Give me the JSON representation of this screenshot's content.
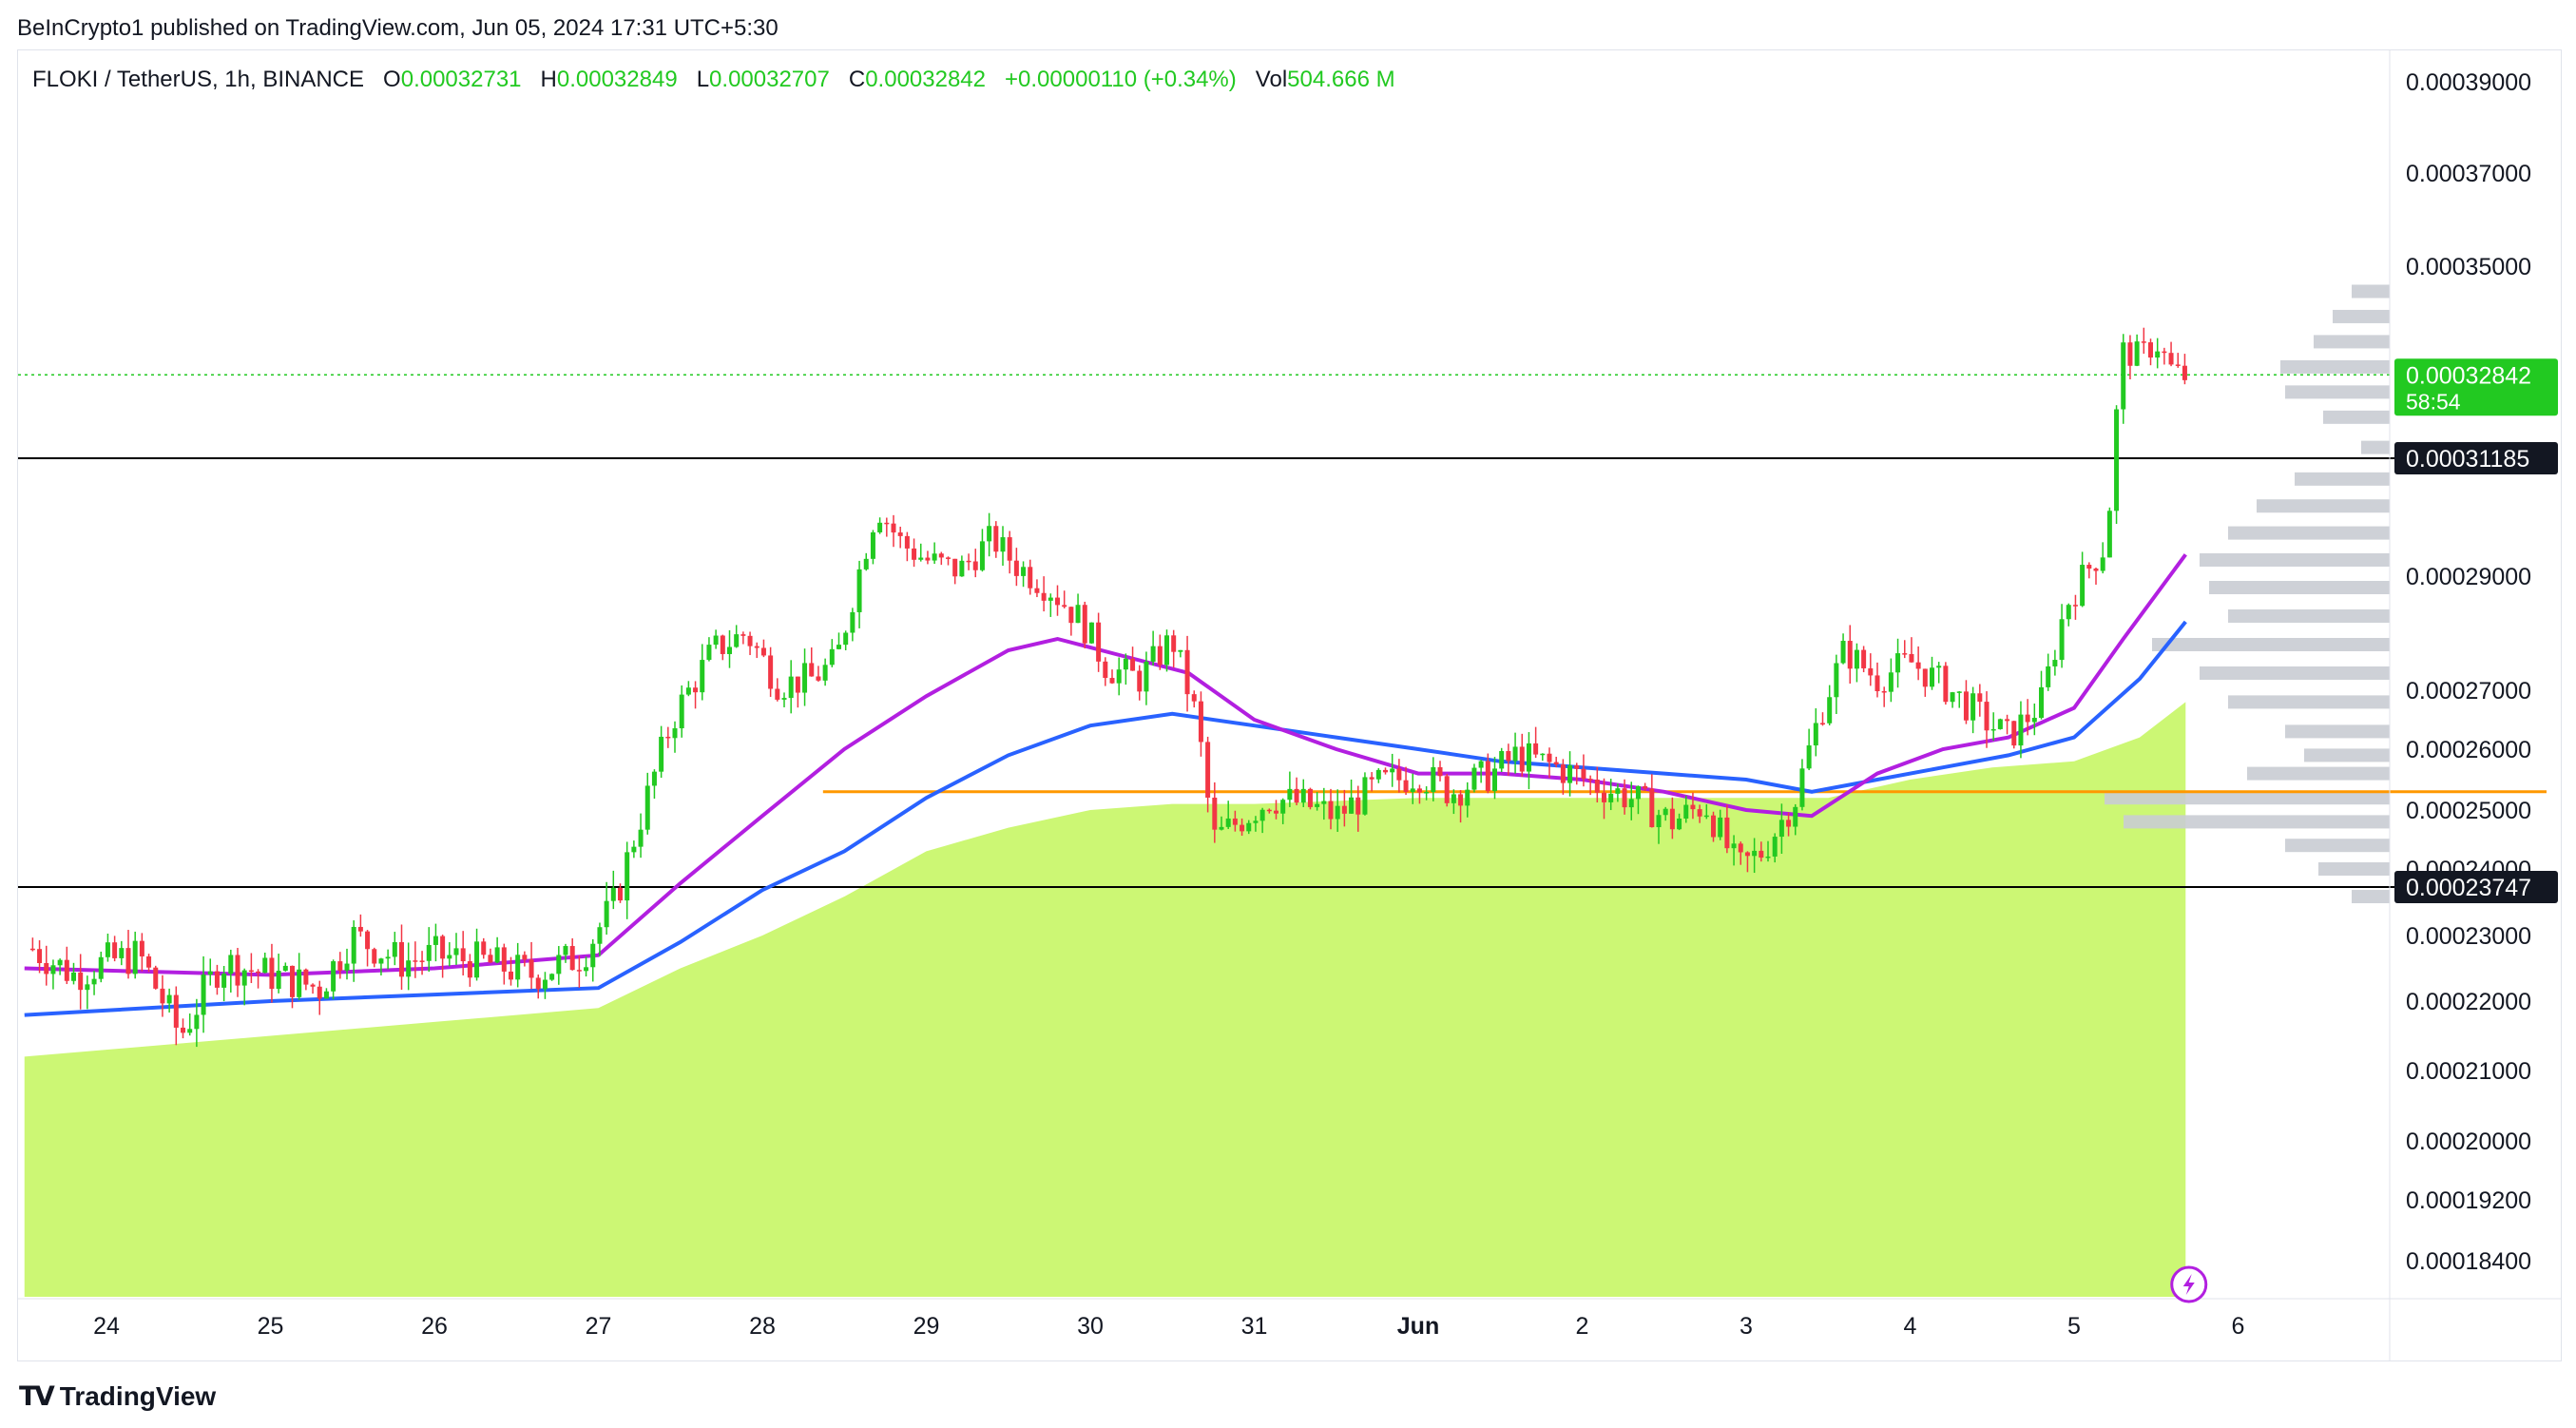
{
  "header": {
    "published_text": "BeInCrypto1 published on TradingView.com, Jun 05, 2024 17:31 UTC+5:30"
  },
  "legend": {
    "symbol": "FLOKI / TetherUS, 1h, BINANCE",
    "o_label": "O",
    "o_value": "0.00032731",
    "h_label": "H",
    "h_value": "0.00032849",
    "l_label": "L",
    "l_value": "0.00032707",
    "c_label": "C",
    "c_value": "0.00032842",
    "change": "+0.00000110 (+0.34%)",
    "vol_label": "Vol",
    "vol_value": "504.666 M"
  },
  "footer": {
    "brand": "TradingView"
  },
  "colors": {
    "up": "#22c921",
    "down": "#f23645",
    "ema_fast": "#b21fe0",
    "ema_slow": "#2962ff",
    "vwap_fill": "#ccf774",
    "support_orange": "#ff9800",
    "profile": "#c9ccd3"
  },
  "chart_data": {
    "type": "candlestick",
    "symbol": "FLOKI / TetherUS",
    "interval": "1h",
    "exchange": "BINANCE",
    "y_axis_ticks": [
      "0.00039000",
      "0.00037000",
      "0.00035000",
      "0.00029000",
      "0.00027000",
      "0.00026000",
      "0.00025000",
      "0.00024000",
      "0.00023000",
      "0.00022000",
      "0.00021000",
      "0.00020000",
      "0.00019200",
      "0.00018400"
    ],
    "y_axis_tick_values": [
      0.00039,
      0.00037,
      0.00035,
      0.00029,
      0.00027,
      0.00026,
      0.00025,
      0.00024,
      0.00023,
      0.00022,
      0.00021,
      0.0002,
      0.000192,
      0.000184
    ],
    "x_axis_labels": [
      "24",
      "25",
      "26",
      "27",
      "28",
      "29",
      "30",
      "31",
      "Jun",
      "2",
      "3",
      "4",
      "5",
      "6"
    ],
    "x_axis_positions_day": [
      0,
      1,
      2,
      3,
      4,
      5,
      6,
      7,
      8,
      9,
      10,
      11,
      12,
      13
    ],
    "current_price": {
      "value": "0.00032842",
      "countdown": "58:54"
    },
    "horizontal_levels": [
      {
        "value": "0.00031185",
        "color": "#000000"
      },
      {
        "value": "0.00023747",
        "color": "#000000"
      },
      {
        "value": 0.000253,
        "color": "#ff9800",
        "label": ""
      }
    ],
    "close_series": [
      {
        "day": -0.45,
        "close": 0.000228
      },
      {
        "day": -0.2,
        "close": 0.000224
      },
      {
        "day": 0.0,
        "close": 0.000226
      },
      {
        "day": 0.2,
        "close": 0.000227
      },
      {
        "day": 0.45,
        "close": 0.000215
      },
      {
        "day": 0.7,
        "close": 0.000226
      },
      {
        "day": 1.0,
        "close": 0.000224
      },
      {
        "day": 1.3,
        "close": 0.000222
      },
      {
        "day": 1.5,
        "close": 0.00023
      },
      {
        "day": 1.8,
        "close": 0.000226
      },
      {
        "day": 2.0,
        "close": 0.000227
      },
      {
        "day": 2.3,
        "close": 0.000226
      },
      {
        "day": 2.6,
        "close": 0.000224
      },
      {
        "day": 2.9,
        "close": 0.000227
      },
      {
        "day": 3.1,
        "close": 0.000235
      },
      {
        "day": 3.25,
        "close": 0.000248
      },
      {
        "day": 3.45,
        "close": 0.000265
      },
      {
        "day": 3.7,
        "close": 0.000277
      },
      {
        "day": 3.9,
        "close": 0.00028
      },
      {
        "day": 4.1,
        "close": 0.000271
      },
      {
        "day": 4.3,
        "close": 0.000272
      },
      {
        "day": 4.45,
        "close": 0.000275
      },
      {
        "day": 4.6,
        "close": 0.000292
      },
      {
        "day": 4.7,
        "close": 0.000303
      },
      {
        "day": 4.85,
        "close": 0.000296
      },
      {
        "day": 5.0,
        "close": 0.000293
      },
      {
        "day": 5.2,
        "close": 0.000291
      },
      {
        "day": 5.4,
        "close": 0.000297
      },
      {
        "day": 5.55,
        "close": 0.000292
      },
      {
        "day": 5.75,
        "close": 0.000288
      },
      {
        "day": 5.95,
        "close": 0.000282
      },
      {
        "day": 6.1,
        "close": 0.000274
      },
      {
        "day": 6.3,
        "close": 0.000272
      },
      {
        "day": 6.5,
        "close": 0.000279
      },
      {
        "day": 6.65,
        "close": 0.000265
      },
      {
        "day": 6.75,
        "close": 0.000245
      },
      {
        "day": 6.9,
        "close": 0.000248
      },
      {
        "day": 7.1,
        "close": 0.000252
      },
      {
        "day": 7.3,
        "close": 0.000251
      },
      {
        "day": 7.5,
        "close": 0.000249
      },
      {
        "day": 7.75,
        "close": 0.000254
      },
      {
        "day": 8.0,
        "close": 0.000256
      },
      {
        "day": 8.2,
        "close": 0.000253
      },
      {
        "day": 8.45,
        "close": 0.000256
      },
      {
        "day": 8.6,
        "close": 0.000259
      },
      {
        "day": 8.85,
        "close": 0.000257
      },
      {
        "day": 9.1,
        "close": 0.000254
      },
      {
        "day": 9.3,
        "close": 0.000252
      },
      {
        "day": 9.55,
        "close": 0.000248
      },
      {
        "day": 9.75,
        "close": 0.000251
      },
      {
        "day": 9.95,
        "close": 0.00024
      },
      {
        "day": 10.1,
        "close": 0.000243
      },
      {
        "day": 10.3,
        "close": 0.000252
      },
      {
        "day": 10.45,
        "close": 0.000266
      },
      {
        "day": 10.6,
        "close": 0.000277
      },
      {
        "day": 10.8,
        "close": 0.000272
      },
      {
        "day": 11.0,
        "close": 0.000275
      },
      {
        "day": 11.2,
        "close": 0.000271
      },
      {
        "day": 11.45,
        "close": 0.000265
      },
      {
        "day": 11.6,
        "close": 0.000262
      },
      {
        "day": 11.8,
        "close": 0.000268
      },
      {
        "day": 11.95,
        "close": 0.000285
      },
      {
        "day": 12.1,
        "close": 0.000292
      },
      {
        "day": 12.2,
        "close": 0.000296
      },
      {
        "day": 12.25,
        "close": 0.000318
      },
      {
        "day": 12.3,
        "close": 0.000333
      },
      {
        "day": 12.4,
        "close": 0.000332
      },
      {
        "day": 12.5,
        "close": 0.000335
      },
      {
        "day": 12.6,
        "close": 0.000329
      },
      {
        "day": 12.68,
        "close": 0.000328
      }
    ],
    "ema_fast": [
      {
        "day": -0.5,
        "value": 0.000225
      },
      {
        "day": 1.0,
        "value": 0.000224
      },
      {
        "day": 2.0,
        "value": 0.000225
      },
      {
        "day": 3.0,
        "value": 0.000227
      },
      {
        "day": 3.5,
        "value": 0.000238
      },
      {
        "day": 4.0,
        "value": 0.000249
      },
      {
        "day": 4.5,
        "value": 0.00026
      },
      {
        "day": 5.0,
        "value": 0.000269
      },
      {
        "day": 5.5,
        "value": 0.000277
      },
      {
        "day": 5.8,
        "value": 0.000279
      },
      {
        "day": 6.2,
        "value": 0.000276
      },
      {
        "day": 6.6,
        "value": 0.000273
      },
      {
        "day": 7.0,
        "value": 0.000265
      },
      {
        "day": 7.5,
        "value": 0.00026
      },
      {
        "day": 8.0,
        "value": 0.000256
      },
      {
        "day": 8.5,
        "value": 0.000256
      },
      {
        "day": 9.0,
        "value": 0.000255
      },
      {
        "day": 9.5,
        "value": 0.000253
      },
      {
        "day": 10.0,
        "value": 0.00025
      },
      {
        "day": 10.4,
        "value": 0.000249
      },
      {
        "day": 10.8,
        "value": 0.000256
      },
      {
        "day": 11.2,
        "value": 0.00026
      },
      {
        "day": 11.6,
        "value": 0.000262
      },
      {
        "day": 12.0,
        "value": 0.000267
      },
      {
        "day": 12.3,
        "value": 0.000279
      },
      {
        "day": 12.68,
        "value": 0.000294
      }
    ],
    "ema_slow": [
      {
        "day": -0.5,
        "value": 0.000218
      },
      {
        "day": 1.0,
        "value": 0.00022
      },
      {
        "day": 2.0,
        "value": 0.000221
      },
      {
        "day": 3.0,
        "value": 0.000222
      },
      {
        "day": 3.5,
        "value": 0.000229
      },
      {
        "day": 4.0,
        "value": 0.000237
      },
      {
        "day": 4.5,
        "value": 0.000243
      },
      {
        "day": 5.0,
        "value": 0.000252
      },
      {
        "day": 5.5,
        "value": 0.000259
      },
      {
        "day": 6.0,
        "value": 0.000264
      },
      {
        "day": 6.5,
        "value": 0.000266
      },
      {
        "day": 7.0,
        "value": 0.000264
      },
      {
        "day": 7.5,
        "value": 0.000262
      },
      {
        "day": 8.0,
        "value": 0.00026
      },
      {
        "day": 8.5,
        "value": 0.000258
      },
      {
        "day": 9.0,
        "value": 0.000257
      },
      {
        "day": 9.5,
        "value": 0.000256
      },
      {
        "day": 10.0,
        "value": 0.000255
      },
      {
        "day": 10.4,
        "value": 0.000253
      },
      {
        "day": 10.8,
        "value": 0.000255
      },
      {
        "day": 11.2,
        "value": 0.000257
      },
      {
        "day": 11.6,
        "value": 0.000259
      },
      {
        "day": 12.0,
        "value": 0.000262
      },
      {
        "day": 12.4,
        "value": 0.000272
      },
      {
        "day": 12.68,
        "value": 0.000282
      }
    ],
    "vwap_area": [
      {
        "day": -0.5,
        "value": 0.000212
      },
      {
        "day": 1.0,
        "value": 0.000215
      },
      {
        "day": 2.0,
        "value": 0.000217
      },
      {
        "day": 3.0,
        "value": 0.000219
      },
      {
        "day": 3.5,
        "value": 0.000225
      },
      {
        "day": 4.0,
        "value": 0.00023
      },
      {
        "day": 4.5,
        "value": 0.000236
      },
      {
        "day": 5.0,
        "value": 0.000243
      },
      {
        "day": 5.5,
        "value": 0.000247
      },
      {
        "day": 6.0,
        "value": 0.00025
      },
      {
        "day": 6.5,
        "value": 0.000251
      },
      {
        "day": 7.0,
        "value": 0.000251
      },
      {
        "day": 8.0,
        "value": 0.000252
      },
      {
        "day": 9.0,
        "value": 0.000252
      },
      {
        "day": 10.0,
        "value": 0.000252
      },
      {
        "day": 10.5,
        "value": 0.000252
      },
      {
        "day": 11.0,
        "value": 0.000255
      },
      {
        "day": 11.5,
        "value": 0.000257
      },
      {
        "day": 12.0,
        "value": 0.000258
      },
      {
        "day": 12.4,
        "value": 0.000262
      },
      {
        "day": 12.68,
        "value": 0.000268
      }
    ]
  }
}
